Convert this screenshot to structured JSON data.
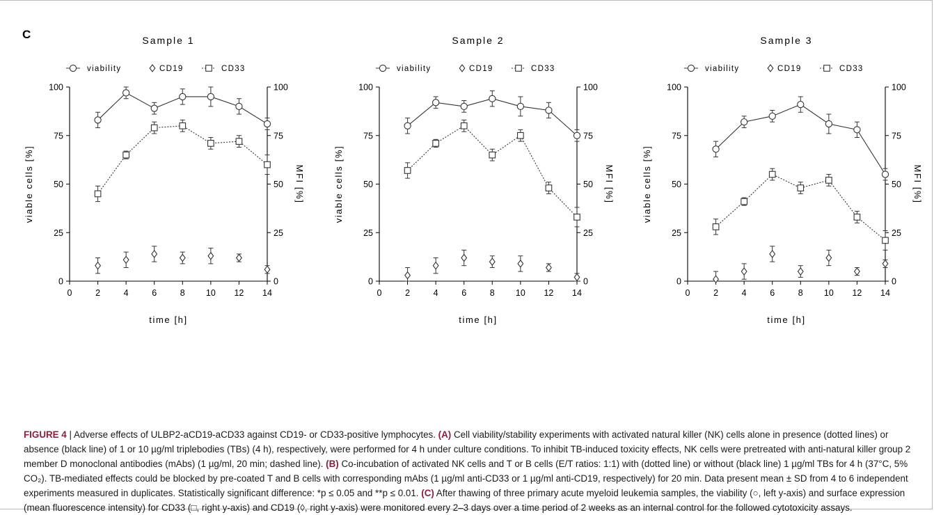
{
  "panel_letter": "C",
  "chart_data": [
    {
      "type": "line",
      "title": "Sample 1",
      "xlabel": "time [h]",
      "ylabel": "viable cells [%]",
      "y2label": "MFI [%]",
      "x_ticks": [
        0,
        2,
        4,
        6,
        8,
        10,
        12,
        14
      ],
      "y_ticks": [
        0,
        25,
        50,
        75,
        100
      ],
      "xlim": [
        0,
        14
      ],
      "ylim": [
        0,
        100
      ],
      "y2lim": [
        0,
        100
      ],
      "legend": [
        "viability",
        "CD19",
        "CD33"
      ],
      "legend_position": "top",
      "grid": false,
      "x": [
        2,
        4,
        6,
        8,
        10,
        12,
        14
      ],
      "series": [
        {
          "name": "viability",
          "marker": "circle",
          "line": "solid",
          "values": [
            83,
            97,
            89,
            95,
            95,
            90,
            81
          ],
          "sd": [
            4,
            3,
            3,
            4,
            5,
            4,
            3
          ]
        },
        {
          "name": "CD19",
          "marker": "diamond",
          "line": "none",
          "values": [
            8,
            11,
            14,
            12,
            13,
            12,
            6
          ],
          "sd": [
            4,
            4,
            4,
            3,
            4,
            2,
            2
          ]
        },
        {
          "name": "CD33",
          "marker": "square",
          "line": "dotted",
          "values": [
            45,
            65,
            79,
            80,
            71,
            72,
            60
          ],
          "sd": [
            4,
            2,
            3,
            3,
            3,
            3,
            5
          ]
        }
      ]
    },
    {
      "type": "line",
      "title": "Sample 2",
      "xlabel": "time [h]",
      "ylabel": "viable cells [%]",
      "y2label": "MFI [%]",
      "x_ticks": [
        0,
        2,
        4,
        6,
        8,
        10,
        12,
        14
      ],
      "y_ticks": [
        0,
        25,
        50,
        75,
        100
      ],
      "xlim": [
        0,
        14
      ],
      "ylim": [
        0,
        100
      ],
      "y2lim": [
        0,
        100
      ],
      "legend": [
        "viability",
        "CD19",
        "CD33"
      ],
      "legend_position": "top",
      "grid": false,
      "x": [
        2,
        4,
        6,
        8,
        10,
        12,
        14
      ],
      "series": [
        {
          "name": "viability",
          "marker": "circle",
          "line": "solid",
          "values": [
            80,
            92,
            90,
            94,
            90,
            88,
            75
          ],
          "sd": [
            4,
            3,
            3,
            4,
            5,
            4,
            3
          ]
        },
        {
          "name": "CD19",
          "marker": "diamond",
          "line": "none",
          "values": [
            3,
            8,
            12,
            10,
            9,
            7,
            2
          ],
          "sd": [
            4,
            4,
            4,
            3,
            4,
            2,
            2
          ]
        },
        {
          "name": "CD33",
          "marker": "square",
          "line": "dotted",
          "values": [
            57,
            71,
            80,
            65,
            75,
            48,
            33
          ],
          "sd": [
            4,
            2,
            3,
            3,
            3,
            3,
            5
          ]
        }
      ]
    },
    {
      "type": "line",
      "title": "Sample 3",
      "xlabel": "time [h]",
      "ylabel": "viable cells [%]",
      "y2label": "MFI [%]",
      "x_ticks": [
        0,
        2,
        4,
        6,
        8,
        10,
        12,
        14
      ],
      "y_ticks": [
        0,
        25,
        50,
        75,
        100
      ],
      "xlim": [
        0,
        14
      ],
      "ylim": [
        0,
        100
      ],
      "y2lim": [
        0,
        100
      ],
      "legend": [
        "viability",
        "CD19",
        "CD33"
      ],
      "legend_position": "top",
      "grid": false,
      "x": [
        2,
        4,
        6,
        8,
        10,
        12,
        14
      ],
      "series": [
        {
          "name": "viability",
          "marker": "circle",
          "line": "solid",
          "values": [
            68,
            82,
            85,
            91,
            81,
            78,
            55
          ],
          "sd": [
            4,
            3,
            3,
            4,
            5,
            4,
            3
          ]
        },
        {
          "name": "CD19",
          "marker": "diamond",
          "line": "none",
          "values": [
            1,
            5,
            14,
            5,
            12,
            5,
            9
          ],
          "sd": [
            4,
            4,
            4,
            3,
            4,
            2,
            2
          ]
        },
        {
          "name": "CD33",
          "marker": "square",
          "line": "dotted",
          "values": [
            28,
            41,
            55,
            48,
            52,
            33,
            21
          ],
          "sd": [
            4,
            2,
            3,
            3,
            3,
            3,
            5
          ]
        }
      ]
    }
  ],
  "caption": {
    "figure_label": "FIGURE 4",
    "separator": " | ",
    "parts": [
      {
        "label": "",
        "text": "Adverse effects of ULBP2-aCD19-aCD33 against CD19- or CD33-positive lymphocytes. "
      },
      {
        "label": "(A)",
        "text": " Cell viability/stability experiments with activated natural killer (NK) cells alone in presence (dotted lines) or absence (black line) of 1 or 10 µg/ml triplebodies (TBs) (4 h), respectively, were performed for 4 h under culture conditions. To inhibit TB-induced toxicity effects, NK cells were pretreated with anti-natural killer group 2 member D monoclonal antibodies (mAbs) (1 µg/ml, 20 min; dashed line). "
      },
      {
        "label": "(B)",
        "text": " Co-incubation of activated NK cells and T or B cells (E/T ratios: 1:1) with (dotted line) or without (black line) 1 µg/ml TBs for 4 h (37°C, 5% CO₂). TB-mediated effects could be blocked by pre-coated T and B cells with corresponding mAbs (1 µg/ml anti-CD33 or 1 µg/ml anti-CD19, respectively) for 20 min. Data present mean ± SD from 4 to 6 independent experiments measured in duplicates. Statistically significant difference: *p ≤ 0.05 and **p ≤ 0.01. "
      },
      {
        "label": "(C)",
        "text": " After thawing of three primary acute myeloid leukemia samples, the viability (○, left y-axis) and surface expression (mean fluorescence intensity) for CD33 (□, right y-axis) and CD19 (◊, right y-axis) were monitored every 2–3 days over a time period of 2 weeks as an internal control for the followed cytotoxicity assays."
      }
    ]
  }
}
